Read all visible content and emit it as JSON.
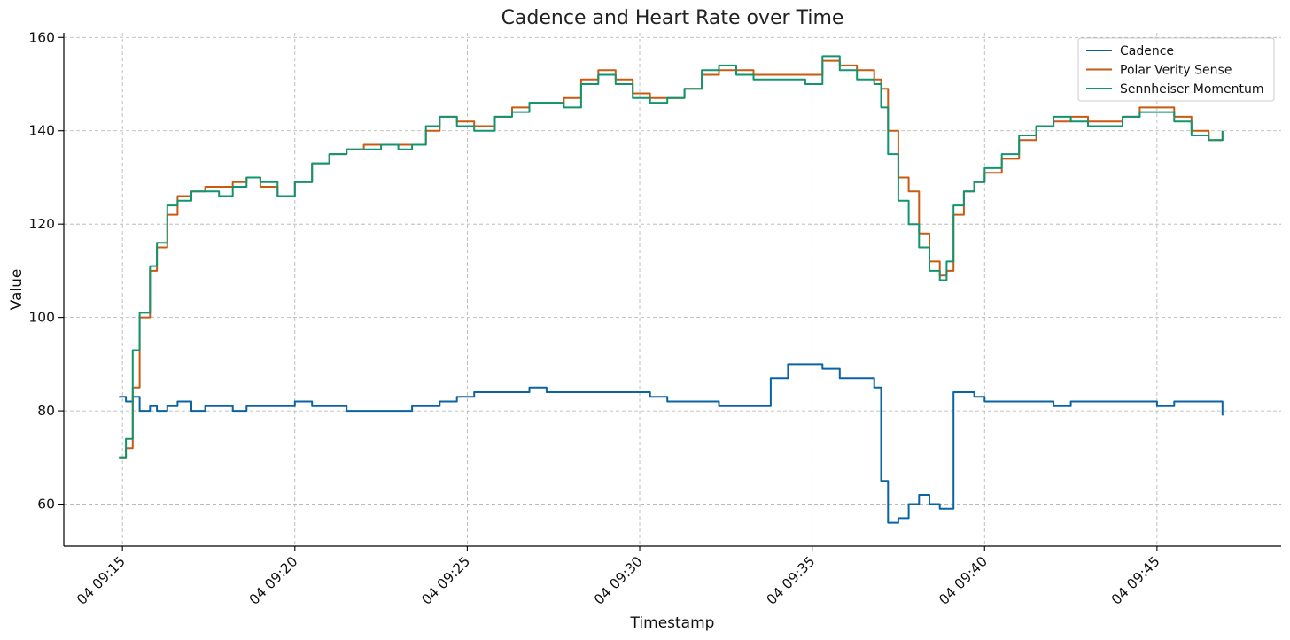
{
  "chart_data": {
    "type": "line",
    "title": "Cadence and Heart Rate over Time",
    "xlabel": "Timestamp",
    "ylabel": "Value",
    "xlim": [
      "04 09:13.3",
      "04 09:48.6"
    ],
    "ylim": [
      51,
      161
    ],
    "x_ticks": [
      "04 09:15",
      "04 09:20",
      "04 09:25",
      "04 09:30",
      "04 09:35",
      "04 09:40",
      "04 09:45"
    ],
    "y_ticks": [
      60,
      80,
      100,
      120,
      140,
      160
    ],
    "grid": true,
    "legend_position": "top-right",
    "x_unit": "minutes after 09:00 on day 04",
    "x": [
      14.9,
      15.1,
      15.3,
      15.5,
      15.8,
      16.0,
      16.3,
      16.6,
      17.0,
      17.4,
      17.8,
      18.2,
      18.6,
      19.0,
      19.5,
      20.0,
      20.5,
      21.0,
      21.5,
      22.0,
      22.5,
      23.0,
      23.4,
      23.8,
      24.2,
      24.7,
      25.2,
      25.8,
      26.3,
      26.8,
      27.3,
      27.8,
      28.3,
      28.8,
      29.3,
      29.8,
      30.3,
      30.8,
      31.3,
      31.8,
      32.3,
      32.8,
      33.3,
      33.8,
      34.3,
      34.8,
      35.3,
      35.8,
      36.3,
      36.8,
      37.0,
      37.2,
      37.5,
      37.8,
      38.1,
      38.4,
      38.7,
      38.9,
      39.1,
      39.4,
      39.7,
      40.0,
      40.5,
      41.0,
      41.5,
      42.0,
      42.5,
      43.0,
      43.5,
      44.0,
      44.5,
      45.0,
      45.5,
      46.0,
      46.5,
      46.9
    ],
    "series": [
      {
        "name": "Cadence",
        "color": "#0a63a2",
        "values": [
          83,
          82,
          83,
          80,
          81,
          80,
          81,
          82,
          80,
          81,
          81,
          80,
          81,
          81,
          81,
          82,
          81,
          81,
          80,
          80,
          80,
          80,
          81,
          81,
          82,
          83,
          84,
          84,
          84,
          85,
          84,
          84,
          84,
          84,
          84,
          84,
          83,
          82,
          82,
          82,
          81,
          81,
          81,
          87,
          90,
          90,
          89,
          87,
          87,
          85,
          65,
          56,
          57,
          60,
          62,
          60,
          59,
          59,
          84,
          84,
          83,
          82,
          82,
          82,
          82,
          81,
          82,
          82,
          82,
          82,
          82,
          81,
          82,
          82,
          82,
          79
        ]
      },
      {
        "name": "Polar Verity Sense",
        "color": "#c85a12",
        "values": [
          70,
          72,
          85,
          100,
          110,
          115,
          122,
          126,
          127,
          128,
          128,
          129,
          130,
          128,
          126,
          129,
          133,
          135,
          136,
          137,
          137,
          137,
          137,
          140,
          143,
          142,
          141,
          143,
          145,
          146,
          146,
          147,
          151,
          153,
          151,
          148,
          147,
          147,
          149,
          152,
          153,
          153,
          152,
          152,
          152,
          152,
          155,
          154,
          153,
          151,
          149,
          140,
          130,
          127,
          118,
          112,
          109,
          110,
          122,
          127,
          129,
          131,
          134,
          138,
          141,
          142,
          143,
          142,
          142,
          143,
          145,
          145,
          143,
          140,
          138,
          140
        ]
      },
      {
        "name": "Sennheiser Momentum",
        "color": "#12956e",
        "values": [
          70,
          74,
          93,
          101,
          111,
          116,
          124,
          125,
          127,
          127,
          126,
          128,
          130,
          129,
          126,
          129,
          133,
          135,
          136,
          136,
          137,
          136,
          137,
          141,
          143,
          141,
          140,
          143,
          144,
          146,
          146,
          145,
          150,
          152,
          150,
          147,
          146,
          147,
          149,
          153,
          154,
          152,
          151,
          151,
          151,
          150,
          156,
          153,
          151,
          150,
          145,
          135,
          125,
          120,
          115,
          110,
          108,
          112,
          124,
          127,
          129,
          132,
          135,
          139,
          141,
          143,
          142,
          141,
          141,
          143,
          144,
          144,
          142,
          139,
          138,
          140
        ]
      }
    ]
  }
}
